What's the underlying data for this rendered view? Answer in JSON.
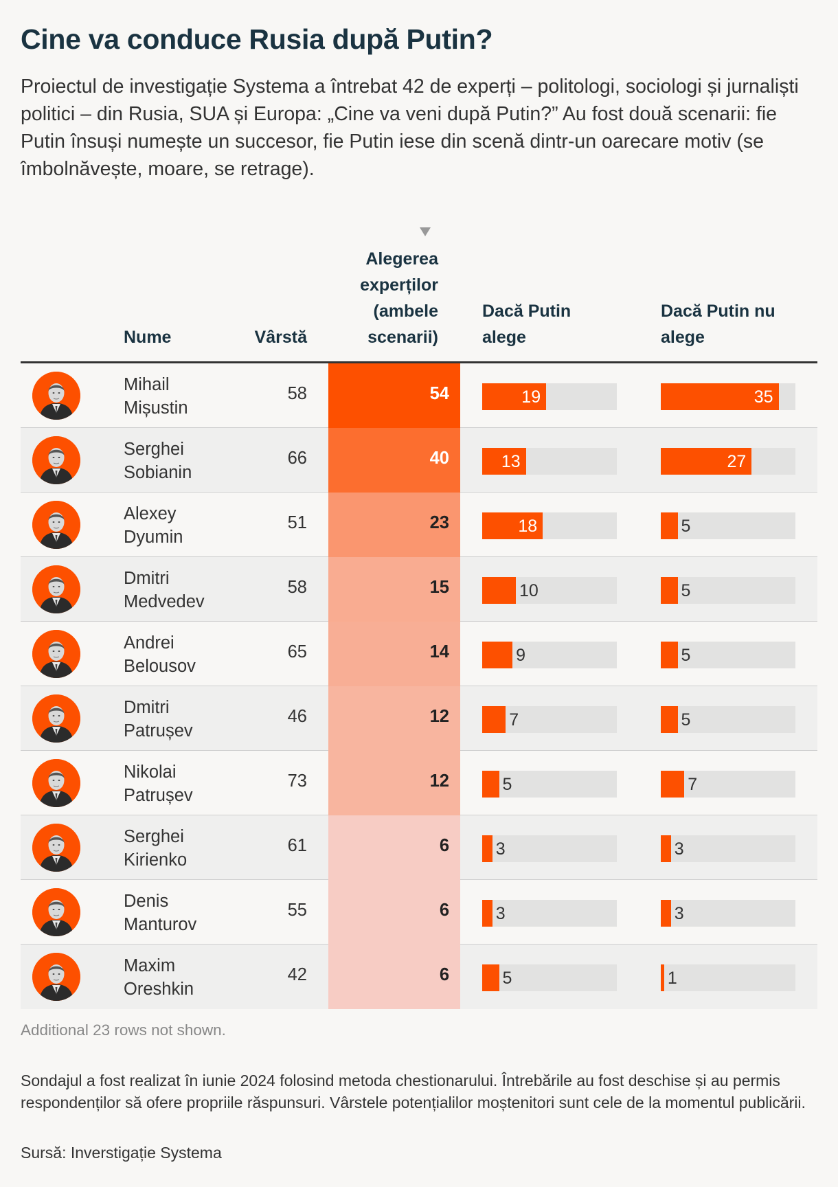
{
  "title": "Cine va conduce Rusia după Putin?",
  "intro": "Proiectul de investigație Systema a întrebat 42 de experți – politologi, sociologi și jurnaliști politici – din Rusia, SUA și Europa: „Cine va veni după Putin?” Au fost două scenarii: fie Putin însuși numește un succesor, fie Putin iese din scenă dintr-un oarecare motiv (se îmbolnăvește, moare, se retrage).",
  "headers": {
    "name": "Nume",
    "age": "Vârstă",
    "experts": "Alegerea experților (ambele scenarii)",
    "pick": "Dacă Putin alege",
    "nopick": "Dacă Putin nu alege"
  },
  "colors": {
    "accent": "#fd5000",
    "track": "#e2e2e1",
    "title": "#1a3341"
  },
  "chart_data": {
    "type": "table",
    "title": "Cine va conduce Rusia după Putin?",
    "columns": [
      "Nume",
      "Vârstă",
      "Alegerea experților (ambele scenarii)",
      "Dacă Putin alege",
      "Dacă Putin nu alege"
    ],
    "sort_column": "Alegerea experților (ambele scenarii)",
    "bar_scale_max": 40,
    "rows": [
      {
        "first": "Mihail",
        "last": "Mișustin",
        "age": 58,
        "experts": 54,
        "pick": 19,
        "nopick": 35
      },
      {
        "first": "Serghei",
        "last": "Sobianin",
        "age": 66,
        "experts": 40,
        "pick": 13,
        "nopick": 27
      },
      {
        "first": "Alexey",
        "last": "Dyumin",
        "age": 51,
        "experts": 23,
        "pick": 18,
        "nopick": 5
      },
      {
        "first": "Dmitri",
        "last": "Medvedev",
        "age": 58,
        "experts": 15,
        "pick": 10,
        "nopick": 5
      },
      {
        "first": "Andrei",
        "last": "Belousov",
        "age": 65,
        "experts": 14,
        "pick": 9,
        "nopick": 5
      },
      {
        "first": "Dmitri",
        "last": "Patrușev",
        "age": 46,
        "experts": 12,
        "pick": 7,
        "nopick": 5
      },
      {
        "first": "Nikolai",
        "last": "Patrușev",
        "age": 73,
        "experts": 12,
        "pick": 5,
        "nopick": 7
      },
      {
        "first": "Serghei",
        "last": "Kirienko",
        "age": 61,
        "experts": 6,
        "pick": 3,
        "nopick": 3
      },
      {
        "first": "Denis",
        "last": "Manturov",
        "age": 55,
        "experts": 6,
        "pick": 3,
        "nopick": 3
      },
      {
        "first": "Maxim",
        "last": "Oreshkin",
        "age": 42,
        "experts": 6,
        "pick": 5,
        "nopick": 1
      }
    ]
  },
  "more_rows": "Additional 23 rows not shown.",
  "note": "Sondajul a fost realizat în iunie 2024 folosind metoda chestionarului. Întrebările au fost deschise și au permis respondenților să ofere propriile răspunsuri. Vârstele potențialilor moștenitori sunt cele de la momentul publicării.",
  "source": "Sursă: Inverstigație Systema"
}
